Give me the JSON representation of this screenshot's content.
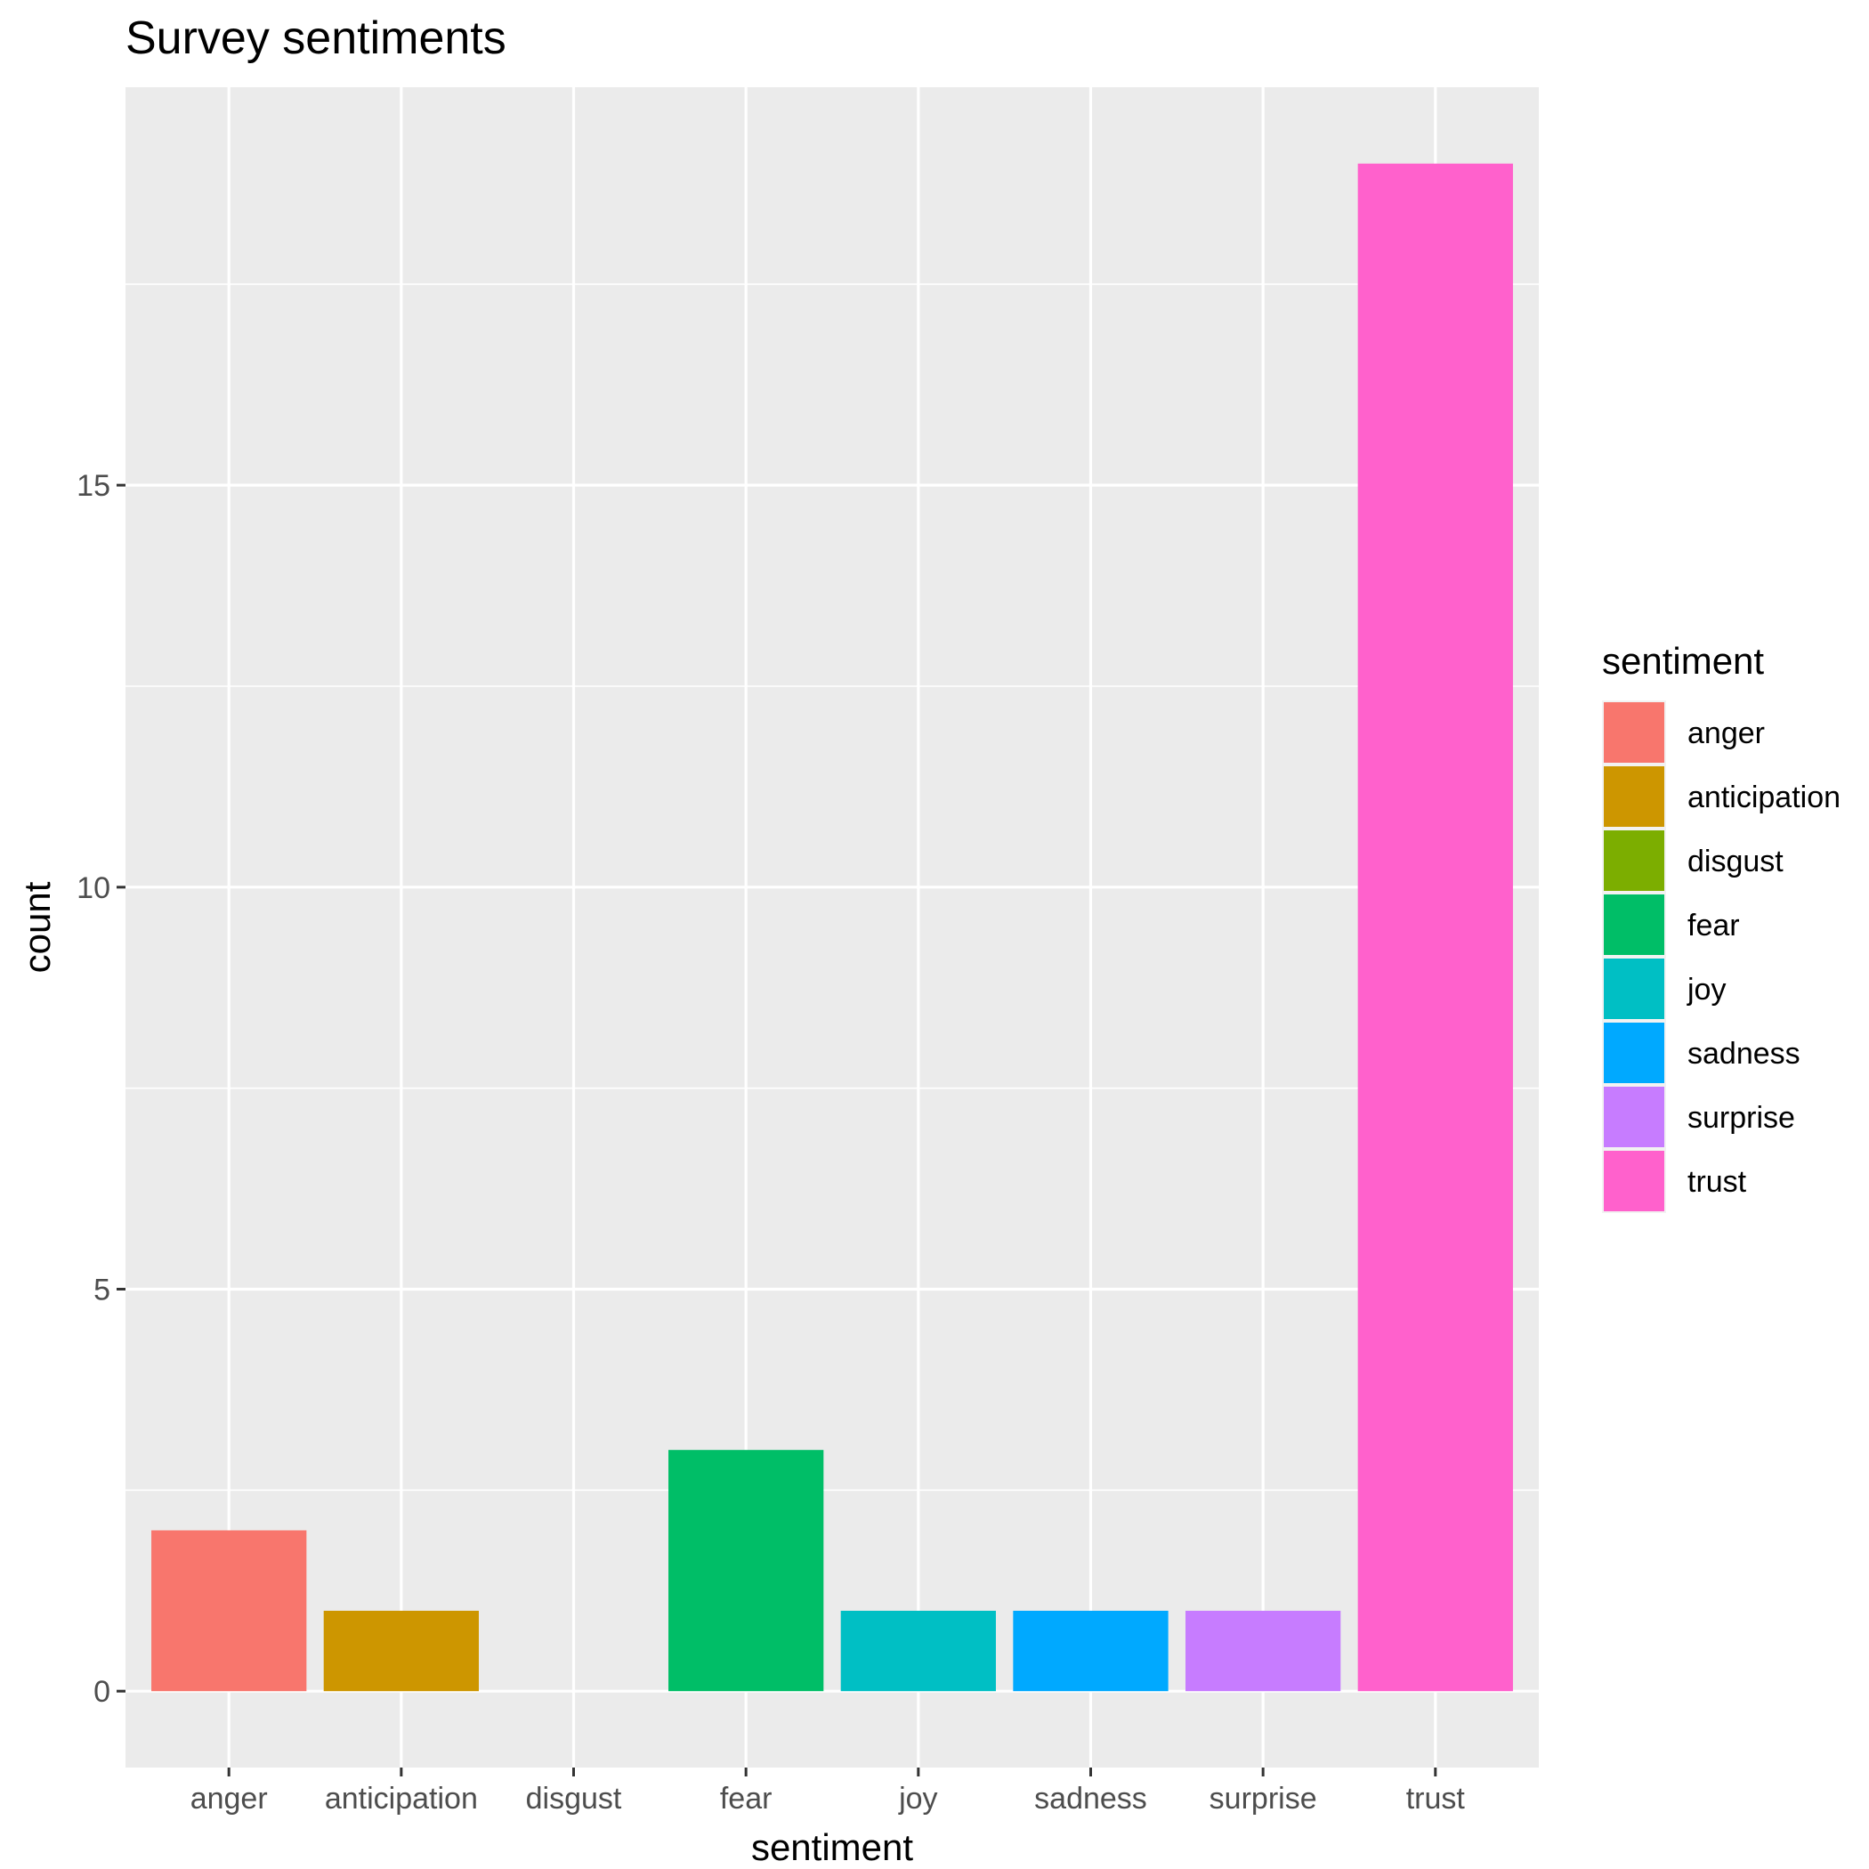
{
  "chart_data": {
    "type": "bar",
    "title": "Survey sentiments",
    "xlabel": "sentiment",
    "ylabel": "count",
    "categories": [
      "anger",
      "anticipation",
      "disgust",
      "fear",
      "joy",
      "sadness",
      "surprise",
      "trust"
    ],
    "values": [
      2,
      1,
      0,
      3,
      1,
      1,
      1,
      19
    ],
    "colors": [
      "#F8766D",
      "#CD9600",
      "#7CAE00",
      "#00BE67",
      "#00BFC4",
      "#00A9FF",
      "#C77CFF",
      "#FF61CC"
    ],
    "yticks": [
      0,
      5,
      10,
      15
    ],
    "ylim": [
      -0.95,
      19.95
    ],
    "grid": true,
    "legend": {
      "title": "sentiment",
      "position": "right",
      "items": [
        "anger",
        "anticipation",
        "disgust",
        "fear",
        "joy",
        "sadness",
        "surprise",
        "trust"
      ]
    },
    "panel_background": "#EBEBEB",
    "grid_color": "#FFFFFF"
  }
}
